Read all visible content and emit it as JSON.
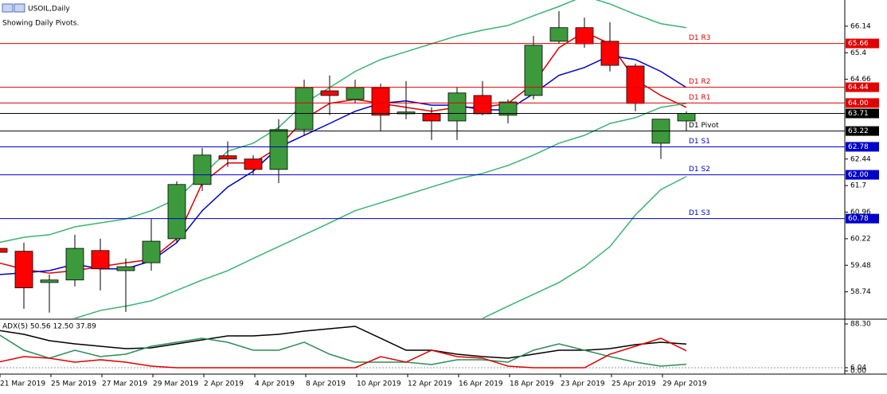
{
  "chart_data": [
    {
      "type": "candlestick",
      "title": "USOIL,Daily",
      "subtitle": "Showing Daily Pivots.",
      "categories": [
        "21 Mar 2019",
        null,
        "25 Mar 2019",
        null,
        "27 Mar 2019",
        null,
        "29 Mar 2019",
        null,
        "2 Apr 2019",
        null,
        "4 Apr 2019",
        null,
        "8 Apr 2019",
        null,
        "10 Apr 2019",
        null,
        "12 Apr 2019",
        null,
        "16 Apr 2019",
        null,
        "18 Apr 2019",
        null,
        "23 Apr 2019",
        null,
        "25 Apr 2019",
        null,
        "29 Apr 2019",
        null
      ],
      "open": [
        59.95,
        59.87,
        59.0,
        59.07,
        59.89,
        59.33,
        59.55,
        60.22,
        61.73,
        62.53,
        62.44,
        62.15,
        63.26,
        64.34,
        64.1,
        64.43,
        63.7,
        63.7,
        63.5,
        64.21,
        63.66,
        64.21,
        65.72,
        66.1,
        65.72,
        65.03,
        62.88,
        63.5
      ],
      "high": [
        59.98,
        60.11,
        59.22,
        60.33,
        60.22,
        59.67,
        60.77,
        61.82,
        62.75,
        62.93,
        62.55,
        63.55,
        64.65,
        64.77,
        64.65,
        64.54,
        64.61,
        63.88,
        64.43,
        64.61,
        64.1,
        65.87,
        66.56,
        66.38,
        66.25,
        65.1,
        63.55,
        63.77
      ],
      "low": [
        59.8,
        58.27,
        58.16,
        58.89,
        58.78,
        58.18,
        59.33,
        60.11,
        61.55,
        62.22,
        61.99,
        61.77,
        63.1,
        63.66,
        63.99,
        63.21,
        63.55,
        62.97,
        62.97,
        63.66,
        63.43,
        64.1,
        65.65,
        65.54,
        64.88,
        63.77,
        62.44,
        63.21
      ],
      "close": [
        59.84,
        58.85,
        59.07,
        59.95,
        59.38,
        59.44,
        60.15,
        61.73,
        62.55,
        62.44,
        62.15,
        63.26,
        64.43,
        64.21,
        64.43,
        63.66,
        63.75,
        63.5,
        64.28,
        63.7,
        64.03,
        65.61,
        66.1,
        65.65,
        65.05,
        63.99,
        63.55,
        63.71
      ],
      "up_color": "#3c9a3c",
      "down_color": "#ff0000",
      "ylim": [
        58.0,
        66.87
      ],
      "yticks": [
        66.14,
        65.4,
        64.66,
        62.44,
        61.7,
        60.96,
        60.22,
        59.48,
        58.74
      ],
      "series": [
        {
          "color": "#e00000",
          "values": [
            59.55,
            59.37,
            59.26,
            59.33,
            59.44,
            59.55,
            59.64,
            60.22,
            61.77,
            62.33,
            62.33,
            62.77,
            63.55,
            63.99,
            64.1,
            63.99,
            63.88,
            63.77,
            63.88,
            63.88,
            63.99,
            64.54,
            65.54,
            65.98,
            65.65,
            64.65,
            64.21,
            63.88
          ]
        },
        {
          "color": "#0000c8",
          "values": [
            59.22,
            59.27,
            59.33,
            59.51,
            59.38,
            59.38,
            59.6,
            60.11,
            61.0,
            61.66,
            62.1,
            62.77,
            63.1,
            63.43,
            63.77,
            63.99,
            64.06,
            63.94,
            63.94,
            63.81,
            63.81,
            64.26,
            64.77,
            64.99,
            65.32,
            65.21,
            64.88,
            64.43
          ]
        },
        {
          "color": "#3cb371",
          "values": [
            60.11,
            60.26,
            60.33,
            60.55,
            60.66,
            60.77,
            61.0,
            61.33,
            61.99,
            62.66,
            62.88,
            63.32,
            63.99,
            64.43,
            64.88,
            65.21,
            65.43,
            65.65,
            65.87,
            66.03,
            66.16,
            66.43,
            66.69,
            66.98,
            66.76,
            66.47,
            66.21,
            66.1
          ]
        },
        {
          "color": "#3cb371",
          "values": [
            57.56,
            57.74,
            57.89,
            58.0,
            58.22,
            58.34,
            58.49,
            58.78,
            59.07,
            59.33,
            59.67,
            60.0,
            60.33,
            60.66,
            61.0,
            61.22,
            61.44,
            61.66,
            61.88,
            62.04,
            62.26,
            62.55,
            62.88,
            63.1,
            63.43,
            63.59,
            63.88,
            63.99
          ]
        },
        {
          "color": "#3cb371",
          "values": [
            null,
            null,
            null,
            null,
            null,
            null,
            null,
            null,
            null,
            null,
            null,
            null,
            null,
            null,
            null,
            null,
            null,
            null,
            null,
            58.0,
            58.34,
            58.67,
            59.0,
            59.44,
            60.0,
            60.88,
            61.59,
            61.95
          ]
        }
      ],
      "pivots": [
        {
          "name": "D1 R3",
          "value": 65.66,
          "color": "#e00000"
        },
        {
          "name": "D1 R2",
          "value": 64.44,
          "color": "#e00000"
        },
        {
          "name": "D1 R1",
          "value": 64.0,
          "value_label": "64.00",
          "color": "#e00000"
        },
        {
          "name": "D1 Pivot",
          "value": 63.22,
          "color": "#000000"
        },
        {
          "name": "D1 S1",
          "value": 62.78,
          "color": "#0000c8"
        },
        {
          "name": "D1 S2",
          "value": 62.0,
          "value_label": "62.00",
          "color": "#0000c8"
        },
        {
          "name": "D1 S3",
          "value": 60.78,
          "color": "#0000c8"
        }
      ],
      "current_price": 63.71
    },
    {
      "type": "line",
      "title": "ADX(5) 50.56 12.50 37.89",
      "ylim": [
        0,
        88.3
      ],
      "yticks": [
        {
          "value": 88.3,
          "label": "88.30"
        },
        6.04,
        {
          "value": 0,
          "label": "0.00"
        }
      ],
      "series": [
        {
          "color": "#000000",
          "values": [
            76.3,
            68.9,
            56.9,
            50.9,
            46.4,
            41.9,
            43.4,
            50.9,
            58.4,
            65.9,
            65.9,
            68.9,
            74.9,
            79.3,
            83.8,
            61.4,
            38.9,
            38.9,
            31.4,
            26.9,
            24.0,
            31.4,
            38.9,
            38.9,
            41.9,
            49.4,
            53.9,
            50.6
          ]
        },
        {
          "color": "#2e8b57",
          "values": [
            68.9,
            38.9,
            24.0,
            38.9,
            26.9,
            31.4,
            46.4,
            53.9,
            61.4,
            53.9,
            38.9,
            38.9,
            53.9,
            31.4,
            16.5,
            16.5,
            16.5,
            12.0,
            21.0,
            21.0,
            16.5,
            38.9,
            50.9,
            38.9,
            26.9,
            16.5,
            9.0,
            12.5
          ]
        },
        {
          "color": "#e00000",
          "values": [
            16.5,
            26.9,
            24.0,
            16.5,
            21.0,
            16.5,
            9.0,
            6.0,
            6.0,
            6.0,
            6.0,
            6.0,
            6.0,
            6.0,
            6.0,
            26.9,
            16.5,
            38.9,
            26.9,
            24.0,
            9.0,
            6.0,
            6.0,
            6.0,
            31.4,
            46.4,
            61.4,
            37.9
          ]
        }
      ]
    }
  ]
}
